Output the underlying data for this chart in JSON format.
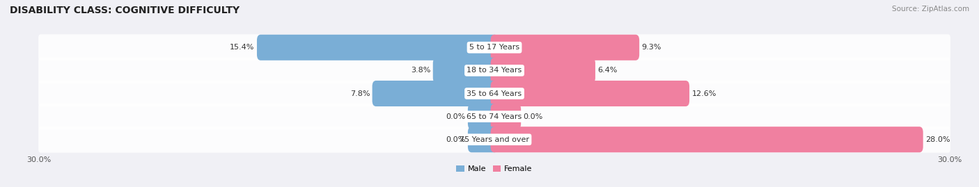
{
  "title": "DISABILITY CLASS: COGNITIVE DIFFICULTY",
  "source": "Source: ZipAtlas.com",
  "categories": [
    "5 to 17 Years",
    "18 to 34 Years",
    "35 to 64 Years",
    "65 to 74 Years",
    "75 Years and over"
  ],
  "male_values": [
    15.4,
    3.8,
    7.8,
    0.0,
    0.0
  ],
  "female_values": [
    9.3,
    6.4,
    12.6,
    0.0,
    28.0
  ],
  "x_max": 30.0,
  "x_min": -30.0,
  "male_color": "#7aaed6",
  "female_color": "#f080a0",
  "male_label": "Male",
  "female_label": "Female",
  "bg_color": "#f0f0f5",
  "row_bg_color": "#e8e8ee",
  "title_fontsize": 10,
  "label_fontsize": 8,
  "tick_fontsize": 8,
  "stub_size": 1.5
}
